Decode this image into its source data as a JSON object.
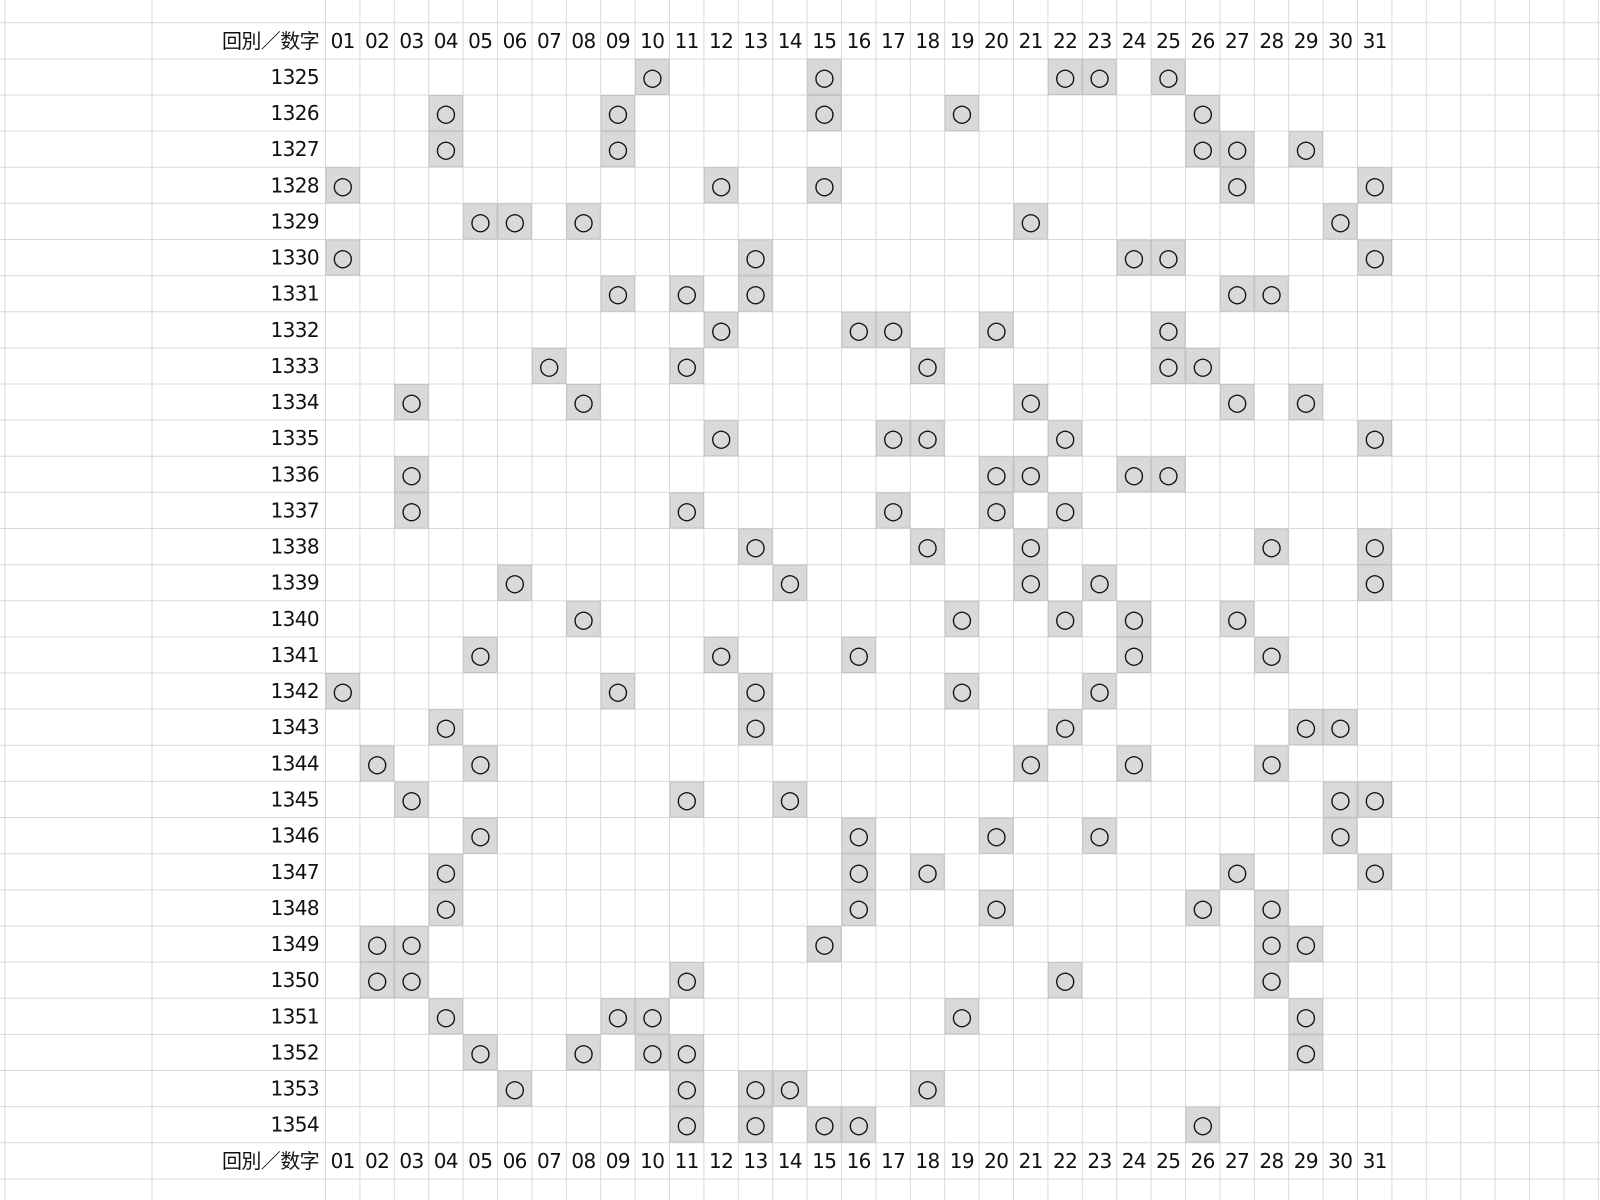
{
  "table": {
    "header": [
      "回別／数字",
      "01",
      "02",
      "03",
      "04",
      "05",
      "06",
      "07",
      "08",
      "09",
      "10",
      "11",
      "12",
      "13",
      "14",
      "15",
      "16",
      "17",
      "18",
      "19",
      "20",
      "21",
      "22",
      "23",
      "24",
      "25",
      "26",
      "27",
      "28",
      "29",
      "30",
      "31"
    ],
    "mark": "○",
    "rows": [
      {
        "round": "1325",
        "hits": [
          "10",
          "15",
          "22",
          "23",
          "25"
        ]
      },
      {
        "round": "1326",
        "hits": [
          "04",
          "09",
          "15",
          "19",
          "26"
        ]
      },
      {
        "round": "1327",
        "hits": [
          "04",
          "09",
          "26",
          "27",
          "29"
        ]
      },
      {
        "round": "1328",
        "hits": [
          "01",
          "12",
          "15",
          "27",
          "31"
        ]
      },
      {
        "round": "1329",
        "hits": [
          "05",
          "06",
          "08",
          "21",
          "30"
        ]
      },
      {
        "round": "1330",
        "hits": [
          "01",
          "13",
          "24",
          "25",
          "31"
        ]
      },
      {
        "round": "1331",
        "hits": [
          "09",
          "11",
          "13",
          "27",
          "28"
        ]
      },
      {
        "round": "1332",
        "hits": [
          "12",
          "16",
          "17",
          "20",
          "25"
        ]
      },
      {
        "round": "1333",
        "hits": [
          "07",
          "11",
          "18",
          "25",
          "26"
        ]
      },
      {
        "round": "1334",
        "hits": [
          "03",
          "08",
          "21",
          "27",
          "29"
        ]
      },
      {
        "round": "1335",
        "hits": [
          "12",
          "17",
          "18",
          "22",
          "31"
        ]
      },
      {
        "round": "1336",
        "hits": [
          "03",
          "20",
          "21",
          "24",
          "25"
        ]
      },
      {
        "round": "1337",
        "hits": [
          "03",
          "11",
          "17",
          "20",
          "22"
        ]
      },
      {
        "round": "1338",
        "hits": [
          "13",
          "18",
          "21",
          "28",
          "31"
        ]
      },
      {
        "round": "1339",
        "hits": [
          "06",
          "14",
          "21",
          "23",
          "31"
        ]
      },
      {
        "round": "1340",
        "hits": [
          "08",
          "19",
          "22",
          "24",
          "27"
        ]
      },
      {
        "round": "1341",
        "hits": [
          "05",
          "12",
          "16",
          "24",
          "28"
        ]
      },
      {
        "round": "1342",
        "hits": [
          "01",
          "09",
          "13",
          "19",
          "23"
        ]
      },
      {
        "round": "1343",
        "hits": [
          "04",
          "13",
          "22",
          "29",
          "30"
        ]
      },
      {
        "round": "1344",
        "hits": [
          "02",
          "05",
          "21",
          "24",
          "28"
        ]
      },
      {
        "round": "1345",
        "hits": [
          "03",
          "11",
          "14",
          "30",
          "31"
        ]
      },
      {
        "round": "1346",
        "hits": [
          "05",
          "16",
          "20",
          "23",
          "30"
        ]
      },
      {
        "round": "1347",
        "hits": [
          "04",
          "16",
          "18",
          "27",
          "31"
        ]
      },
      {
        "round": "1348",
        "hits": [
          "04",
          "16",
          "20",
          "26",
          "28"
        ]
      },
      {
        "round": "1349",
        "hits": [
          "02",
          "03",
          "15",
          "28",
          "29"
        ]
      },
      {
        "round": "1350",
        "hits": [
          "02",
          "03",
          "11",
          "22",
          "28"
        ]
      },
      {
        "round": "1351",
        "hits": [
          "04",
          "09",
          "10",
          "19",
          "29"
        ]
      },
      {
        "round": "1352",
        "hits": [
          "05",
          "08",
          "10",
          "11",
          "29"
        ]
      },
      {
        "round": "1353",
        "hits": [
          "06",
          "11",
          "13",
          "14",
          "18"
        ]
      },
      {
        "round": "1354",
        "hits": [
          "11",
          "13",
          "15",
          "16",
          "26"
        ]
      }
    ]
  }
}
